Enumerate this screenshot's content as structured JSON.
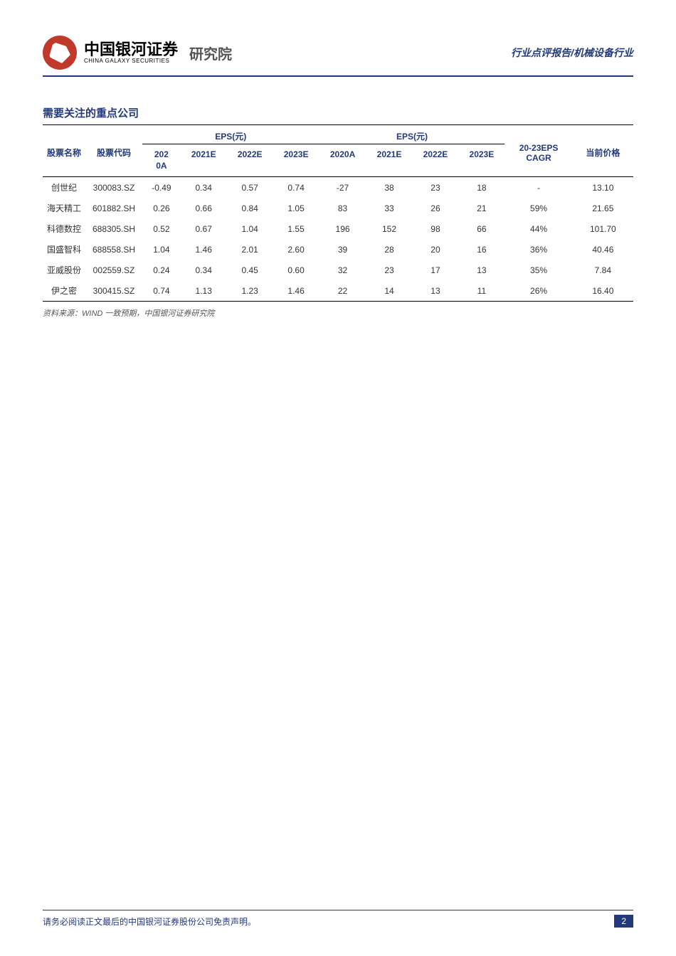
{
  "header": {
    "logo_cn": "中国银河证券",
    "logo_en": "CHINA GALAXY SECURITIES",
    "logo_sub": "研究院",
    "right_text": "行业点评报告/机械设备行业"
  },
  "section_title": "需要关注的重点公司",
  "table": {
    "group_headers": {
      "eps1": "EPS(元)",
      "eps2": "EPS(元)"
    },
    "columns": {
      "name": "股票名称",
      "code": "股票代码",
      "y2020a_eps": "202\n0A",
      "y2021e_eps": "2021E",
      "y2022e_eps": "2022E",
      "y2023e_eps": "2023E",
      "y2020a_pe": "2020A",
      "y2021e_pe": "2021E",
      "y2022e_pe": "2022E",
      "y2023e_pe": "2023E",
      "cagr": "20-23EPS\nCAGR",
      "price": "当前价格"
    },
    "rows": [
      {
        "name": "创世纪",
        "code": "300083.SZ",
        "e20a": "-0.49",
        "e21e": "0.34",
        "e22e": "0.57",
        "e23e": "0.74",
        "p20a": "-27",
        "p21e": "38",
        "p22e": "23",
        "p23e": "18",
        "cagr": "-",
        "price": "13.10"
      },
      {
        "name": "海天精工",
        "code": "601882.SH",
        "e20a": "0.26",
        "e21e": "0.66",
        "e22e": "0.84",
        "e23e": "1.05",
        "p20a": "83",
        "p21e": "33",
        "p22e": "26",
        "p23e": "21",
        "cagr": "59%",
        "price": "21.65"
      },
      {
        "name": "科德数控",
        "code": "688305.SH",
        "e20a": "0.52",
        "e21e": "0.67",
        "e22e": "1.04",
        "e23e": "1.55",
        "p20a": "196",
        "p21e": "152",
        "p22e": "98",
        "p23e": "66",
        "cagr": "44%",
        "price": "101.70"
      },
      {
        "name": "国盛智科",
        "code": "688558.SH",
        "e20a": "1.04",
        "e21e": "1.46",
        "e22e": "2.01",
        "e23e": "2.60",
        "p20a": "39",
        "p21e": "28",
        "p22e": "20",
        "p23e": "16",
        "cagr": "36%",
        "price": "40.46"
      },
      {
        "name": "亚威股份",
        "code": "002559.SZ",
        "e20a": "0.24",
        "e21e": "0.34",
        "e22e": "0.45",
        "e23e": "0.60",
        "p20a": "32",
        "p21e": "23",
        "p22e": "17",
        "p23e": "13",
        "cagr": "35%",
        "price": "7.84"
      },
      {
        "name": "伊之密",
        "code": "300415.SZ",
        "e20a": "0.74",
        "e21e": "1.13",
        "e22e": "1.23",
        "e23e": "1.46",
        "p20a": "22",
        "p21e": "14",
        "p22e": "13",
        "p23e": "11",
        "cagr": "26%",
        "price": "16.40"
      }
    ]
  },
  "source_note": "资料来源：WIND 一致预期，中国银河证券研究院",
  "footer": {
    "disclaimer": "请务必阅读正文最后的中国银河证券股份公司免责声明。",
    "page_number": "2"
  },
  "colors": {
    "primary": "#233a7a",
    "logo_bg": "#c0392b",
    "text": "#333333"
  }
}
